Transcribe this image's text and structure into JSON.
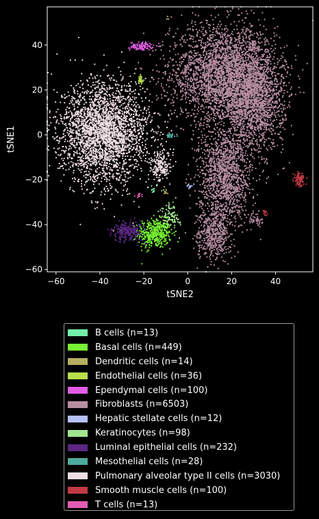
{
  "chart_data": {
    "type": "scatter",
    "title": "",
    "xlabel": "tSNE2",
    "ylabel": "tSNE1",
    "xlim": [
      -64,
      57
    ],
    "ylim": [
      -61,
      57
    ],
    "xticks": [
      -60,
      -40,
      -20,
      0,
      20,
      40
    ],
    "yticks": [
      -60,
      -40,
      -20,
      0,
      20,
      40
    ],
    "grid": false,
    "legend_position": "below",
    "series": [
      {
        "name": "B cells (n=13)",
        "color": "#74eea8",
        "n": 13,
        "clusters": [
          {
            "cx": -16,
            "cy": -24,
            "sx": 1.5,
            "sy": 1.2
          }
        ]
      },
      {
        "name": "Basal cells (n=449)",
        "color": "#76f133",
        "n": 449,
        "clusters": [
          {
            "cx": -15,
            "cy": -44,
            "sx": 3.8,
            "sy": 3.2
          }
        ]
      },
      {
        "name": "Dendritic cells (n=14)",
        "color": "#b5ae62",
        "n": 14,
        "clusters": [
          {
            "cx": -9,
            "cy": 52,
            "sx": 0.5,
            "sy": 0.5
          },
          {
            "cx": -10,
            "cy": -25,
            "sx": 1,
            "sy": 1
          }
        ]
      },
      {
        "name": "Endothelial cells (n=36)",
        "color": "#b6e04b",
        "n": 36,
        "clusters": [
          {
            "cx": -21.5,
            "cy": 24,
            "sx": 0.6,
            "sy": 1.4
          }
        ]
      },
      {
        "name": "Ependymal cells (n=100)",
        "color": "#e25ce6",
        "n": 100,
        "clusters": [
          {
            "cx": -21,
            "cy": 39.5,
            "sx": 2.6,
            "sy": 0.9
          }
        ]
      },
      {
        "name": "Fibroblasts (n=6503)",
        "color": "#b78fa1",
        "n": 6503,
        "clusters": [
          {
            "cx": 16,
            "cy": 27,
            "sx": 12,
            "sy": 11
          },
          {
            "cx": 30,
            "cy": 15,
            "sx": 7,
            "sy": 11
          },
          {
            "cx": 17,
            "cy": -18,
            "sx": 6,
            "sy": 10
          },
          {
            "cx": 12,
            "cy": -44,
            "sx": 4,
            "sy": 6
          },
          {
            "cx": 31,
            "cy": -38,
            "sx": 1.5,
            "sy": 1.3
          },
          {
            "cx": 30,
            "cy": 40,
            "sx": 1.5,
            "sy": 1.5
          }
        ]
      },
      {
        "name": "Hepatic stellate cells (n=12)",
        "color": "#b6c0f7",
        "n": 12,
        "clusters": [
          {
            "cx": 1,
            "cy": -23,
            "sx": 1.3,
            "sy": 0.4
          }
        ]
      },
      {
        "name": "Keratinocytes (n=98)",
        "color": "#a3e58f",
        "n": 98,
        "clusters": [
          {
            "cx": -8,
            "cy": -36,
            "sx": 2.2,
            "sy": 3.2
          }
        ]
      },
      {
        "name": "Luminal epithelial cells (n=232)",
        "color": "#5b2885",
        "n": 232,
        "clusters": [
          {
            "cx": -27,
            "cy": -43,
            "sx": 3.5,
            "sy": 2.2
          }
        ]
      },
      {
        "name": "Mesothelial cells (n=28)",
        "color": "#4daa9b",
        "n": 28,
        "clusters": [
          {
            "cx": -8,
            "cy": -0.5,
            "sx": 1.2,
            "sy": 0.4
          }
        ]
      },
      {
        "name": "Pulmonary alveolar type II cells (n=3030)",
        "color": "#eedee2",
        "n": 3030,
        "clusters": [
          {
            "cx": -38,
            "cy": 1,
            "sx": 10,
            "sy": 11
          },
          {
            "cx": -12,
            "cy": -14,
            "sx": 2.3,
            "sy": 3.2
          }
        ]
      },
      {
        "name": "Smooth muscle cells (n=100)",
        "color": "#c33a44",
        "n": 100,
        "clusters": [
          {
            "cx": 51,
            "cy": -19.5,
            "sx": 1.3,
            "sy": 1.8
          },
          {
            "cx": 35,
            "cy": -35,
            "sx": 0.6,
            "sy": 0.6
          }
        ]
      },
      {
        "name": "T cells (n=13)",
        "color": "#e25bb4",
        "n": 13,
        "clusters": [
          {
            "cx": -23,
            "cy": -27,
            "sx": 1.2,
            "sy": 0.6
          }
        ]
      }
    ]
  }
}
